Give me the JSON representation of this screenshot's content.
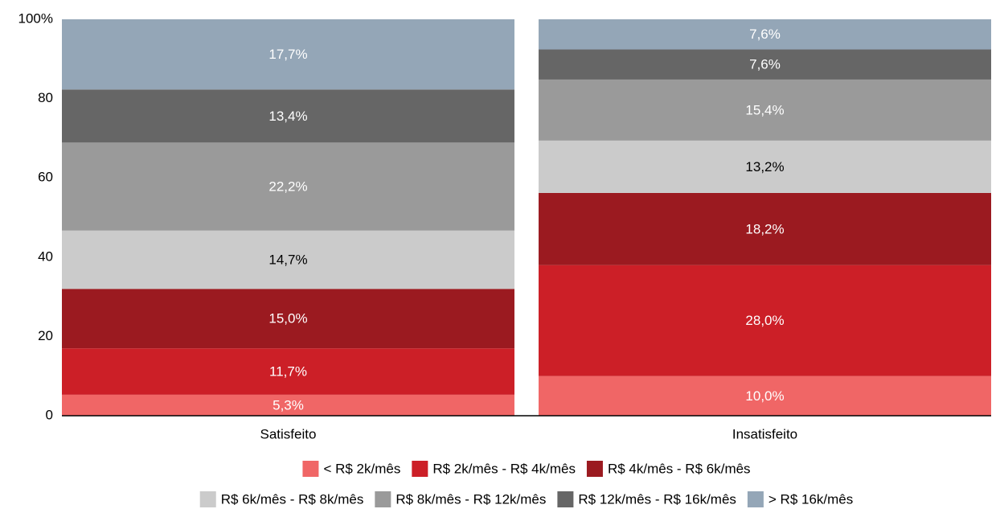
{
  "chart_data": {
    "type": "stacked_bar",
    "categories": [
      "Satisfeito",
      "Insatisfeito"
    ],
    "series": [
      {
        "name": "< R$ 2k/mês",
        "color": "#f06666",
        "values": [
          5.3,
          10.0
        ],
        "value_labels": [
          "5,3%",
          "10,0%"
        ]
      },
      {
        "name": "R$ 2k/mês - R$ 4k/mês",
        "color": "#cc1f27",
        "values": [
          11.7,
          28.0
        ],
        "value_labels": [
          "11,7%",
          "28,0%"
        ]
      },
      {
        "name": "R$ 4k/mês - R$ 6k/mês",
        "color": "#9b1a20",
        "values": [
          15.0,
          18.2
        ],
        "value_labels": [
          "15,0%",
          "18,2%"
        ]
      },
      {
        "name": "R$ 6k/mês - R$ 8k/mês",
        "color": "#cbcbcb",
        "values": [
          14.7,
          13.2
        ],
        "value_labels": [
          "14,7%",
          "13,2%"
        ]
      },
      {
        "name": "R$ 8k/mês - R$ 12k/mês",
        "color": "#9a9a9a",
        "values": [
          22.2,
          15.4
        ],
        "value_labels": [
          "22,2%",
          "15,4%"
        ]
      },
      {
        "name": "R$ 12k/mês - R$ 16k/mês",
        "color": "#666666",
        "values": [
          13.4,
          7.6
        ],
        "value_labels": [
          "13,4%",
          "7,6%"
        ]
      },
      {
        "name": "> R$ 16k/mês",
        "color": "#94a6b7",
        "values": [
          17.7,
          7.6
        ],
        "value_labels": [
          "17,7%",
          "7,6%"
        ]
      }
    ],
    "ylim": [
      0,
      100
    ],
    "yticks": [
      0,
      20,
      40,
      60,
      80,
      {
        "value": 100,
        "label": "100%"
      }
    ],
    "grid": false,
    "legend": "bottom"
  }
}
